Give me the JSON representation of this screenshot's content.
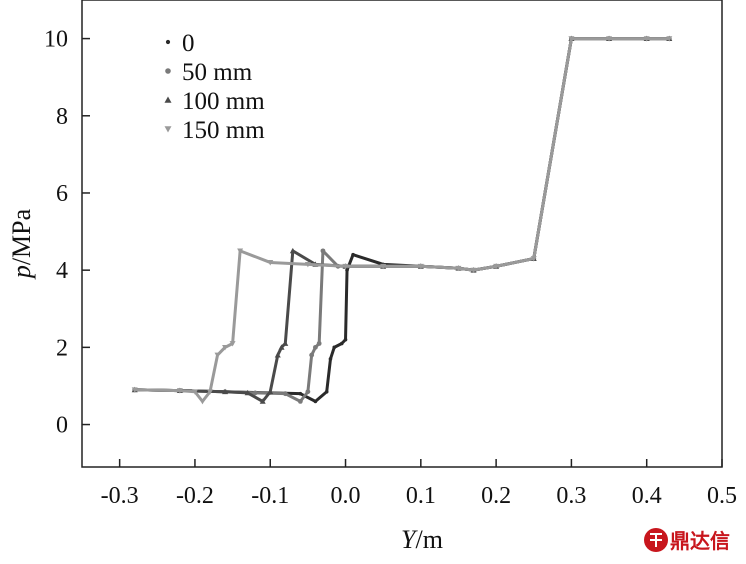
{
  "chart_data": {
    "type": "scatter",
    "xlabel_italic": "Y",
    "xlabel_unit": "/m",
    "ylabel_italic": "p",
    "ylabel_unit": "/MPa",
    "xlim": [
      -0.35,
      0.5
    ],
    "ylim": [
      -1.1,
      11
    ],
    "x_ticks": [
      -0.3,
      -0.2,
      -0.1,
      0.0,
      0.1,
      0.2,
      0.3,
      0.4,
      0.5
    ],
    "x_tick_labels": [
      "-0.3",
      "-0.2",
      "-0.1",
      "0.0",
      "0.1",
      "0.2",
      "0.3",
      "0.4",
      "0.5"
    ],
    "y_ticks": [
      0,
      2,
      4,
      6,
      8,
      10
    ],
    "y_tick_labels": [
      "0",
      "2",
      "4",
      "6",
      "8",
      "10"
    ],
    "grid": false,
    "legend_position": "top-left",
    "series": [
      {
        "name": "0",
        "marker": "dot",
        "color": "#2a2a2a",
        "x": [
          -0.28,
          -0.22,
          -0.16,
          -0.1,
          -0.06,
          -0.04,
          -0.025,
          -0.02,
          -0.015,
          -0.005,
          0.0,
          0.002,
          0.01,
          0.05,
          0.1,
          0.15,
          0.17,
          0.2,
          0.25,
          0.3,
          0.35,
          0.4,
          0.43
        ],
        "y": [
          0.9,
          0.88,
          0.85,
          0.82,
          0.8,
          0.6,
          0.85,
          1.7,
          2.0,
          2.1,
          2.2,
          4.0,
          4.4,
          4.15,
          4.1,
          4.05,
          4.0,
          4.1,
          4.3,
          10.0,
          10.0,
          10.0,
          10.0
        ]
      },
      {
        "name": "50 mm",
        "marker": "circle",
        "color": "#7a7a7a",
        "x": [
          -0.28,
          -0.22,
          -0.16,
          -0.12,
          -0.08,
          -0.06,
          -0.05,
          -0.045,
          -0.04,
          -0.035,
          -0.03,
          -0.01,
          0.05,
          0.1,
          0.15,
          0.17,
          0.2,
          0.25,
          0.3,
          0.35,
          0.4,
          0.43
        ],
        "y": [
          0.9,
          0.88,
          0.85,
          0.82,
          0.8,
          0.6,
          0.85,
          1.8,
          2.0,
          2.1,
          4.5,
          4.1,
          4.1,
          4.1,
          4.05,
          4.0,
          4.1,
          4.3,
          10.0,
          10.0,
          10.0,
          10.0
        ]
      },
      {
        "name": "100 mm",
        "marker": "triangle-up",
        "color": "#4a4a4a",
        "x": [
          -0.28,
          -0.22,
          -0.16,
          -0.13,
          -0.11,
          -0.1,
          -0.09,
          -0.085,
          -0.08,
          -0.07,
          -0.04,
          0.0,
          0.05,
          0.1,
          0.15,
          0.17,
          0.2,
          0.25,
          0.3,
          0.35,
          0.4,
          0.43
        ],
        "y": [
          0.9,
          0.88,
          0.85,
          0.82,
          0.6,
          0.85,
          1.8,
          2.0,
          2.1,
          4.5,
          4.15,
          4.1,
          4.1,
          4.1,
          4.05,
          4.0,
          4.1,
          4.3,
          10.0,
          10.0,
          10.0,
          10.0
        ]
      },
      {
        "name": "150 mm",
        "marker": "triangle-down",
        "color": "#9a9a9a",
        "x": [
          -0.28,
          -0.22,
          -0.2,
          -0.19,
          -0.18,
          -0.17,
          -0.16,
          -0.15,
          -0.14,
          -0.1,
          -0.05,
          0.0,
          0.05,
          0.1,
          0.15,
          0.17,
          0.2,
          0.25,
          0.3,
          0.35,
          0.4,
          0.43
        ],
        "y": [
          0.9,
          0.88,
          0.85,
          0.6,
          0.85,
          1.8,
          2.0,
          2.1,
          4.5,
          4.2,
          4.15,
          4.1,
          4.1,
          4.1,
          4.05,
          4.0,
          4.1,
          4.3,
          10.0,
          10.0,
          10.0,
          10.0
        ]
      }
    ]
  },
  "watermark": {
    "text": "鼎达信",
    "color": "#c8161d"
  }
}
